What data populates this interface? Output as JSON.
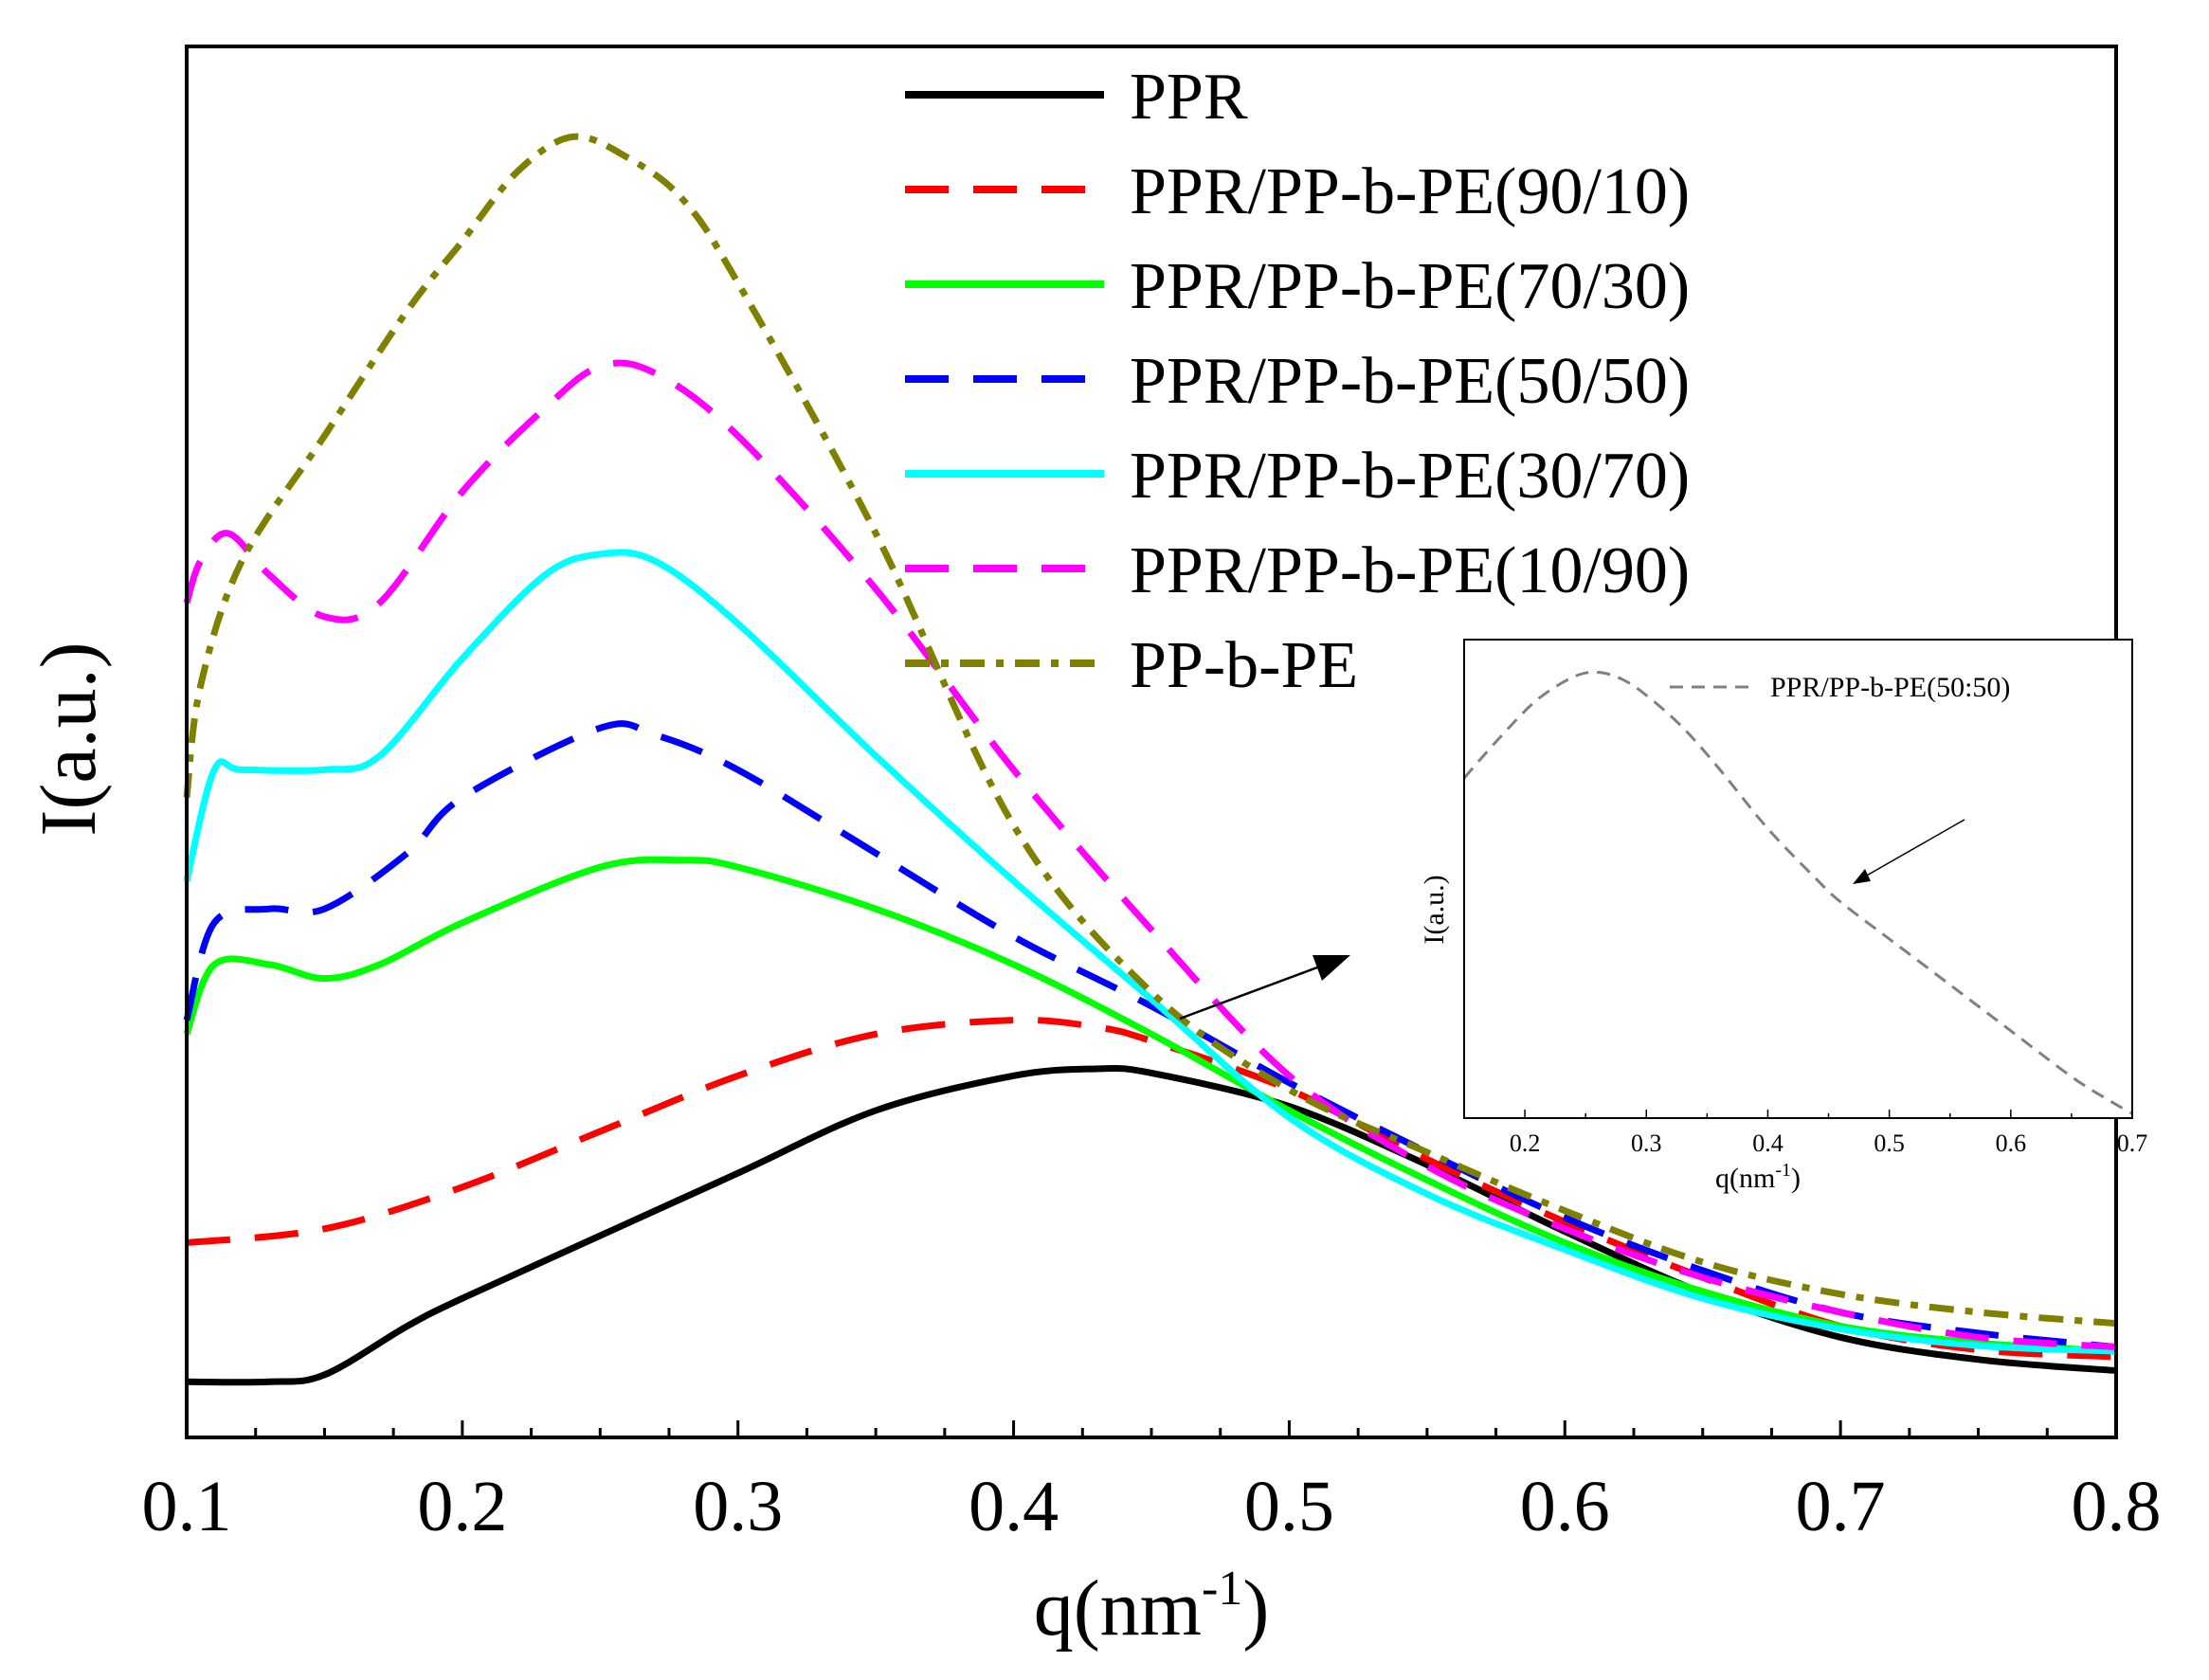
{
  "chart_data": [
    {
      "type": "line",
      "title": "",
      "xlabel": "q(nm",
      "xlabel_sup": "-1",
      "xlabel_close": ")",
      "ylabel": "I(a.u.)",
      "xlim": [
        0.1,
        0.8
      ],
      "ylim": [
        0,
        1
      ],
      "y_ticks_labeled": false,
      "xticks": [
        0.1,
        0.2,
        0.3,
        0.4,
        0.5,
        0.6,
        0.7,
        0.8
      ],
      "xtick_labels": [
        "0.1",
        "0.2",
        "0.3",
        "0.4",
        "0.5",
        "0.6",
        "0.7",
        "0.8"
      ],
      "legend_position": "top-center",
      "series": [
        {
          "name": "PPR",
          "color": "#000000",
          "style": "solid",
          "x": [
            0.1,
            0.13,
            0.15,
            0.18,
            0.2,
            0.25,
            0.3,
            0.35,
            0.4,
            0.43,
            0.45,
            0.5,
            0.55,
            0.6,
            0.65,
            0.7,
            0.75,
            0.8
          ],
          "y": [
            0.04,
            0.04,
            0.045,
            0.08,
            0.1,
            0.145,
            0.19,
            0.235,
            0.26,
            0.265,
            0.262,
            0.238,
            0.196,
            0.148,
            0.104,
            0.072,
            0.056,
            0.048
          ]
        },
        {
          "name": "PPR/PP-b-PE(90/10)",
          "color": "#ff0000",
          "style": "dashed",
          "x": [
            0.1,
            0.15,
            0.2,
            0.25,
            0.3,
            0.35,
            0.4,
            0.43,
            0.45,
            0.5,
            0.55,
            0.6,
            0.65,
            0.7,
            0.75,
            0.8
          ],
          "y": [
            0.14,
            0.15,
            0.18,
            0.22,
            0.26,
            0.29,
            0.3,
            0.295,
            0.285,
            0.25,
            0.2,
            0.155,
            0.115,
            0.08,
            0.063,
            0.058
          ]
        },
        {
          "name": "PPR/PP-b-PE(70/30)",
          "color": "#00ff00",
          "style": "solid",
          "x": [
            0.1,
            0.11,
            0.13,
            0.15,
            0.17,
            0.2,
            0.25,
            0.28,
            0.3,
            0.35,
            0.4,
            0.45,
            0.5,
            0.55,
            0.6,
            0.65,
            0.7,
            0.75,
            0.8
          ],
          "y": [
            0.29,
            0.34,
            0.34,
            0.33,
            0.34,
            0.37,
            0.41,
            0.415,
            0.41,
            0.38,
            0.34,
            0.29,
            0.235,
            0.185,
            0.14,
            0.105,
            0.08,
            0.068,
            0.062
          ]
        },
        {
          "name": "PPR/PP-b-PE(50/50)",
          "color": "#0000ff",
          "style": "dashed",
          "x": [
            0.1,
            0.11,
            0.13,
            0.15,
            0.18,
            0.2,
            0.25,
            0.27,
            0.3,
            0.35,
            0.4,
            0.45,
            0.5,
            0.55,
            0.6,
            0.65,
            0.7,
            0.75,
            0.8
          ],
          "y": [
            0.3,
            0.37,
            0.38,
            0.38,
            0.42,
            0.46,
            0.51,
            0.505,
            0.48,
            0.42,
            0.36,
            0.31,
            0.255,
            0.205,
            0.158,
            0.12,
            0.09,
            0.075,
            0.065
          ]
        },
        {
          "name": "PPR/PP-b-PE(30/70)",
          "color": "#00ffff",
          "style": "solid",
          "x": [
            0.1,
            0.11,
            0.12,
            0.15,
            0.17,
            0.2,
            0.23,
            0.25,
            0.27,
            0.3,
            0.35,
            0.4,
            0.45,
            0.5,
            0.55,
            0.6,
            0.65,
            0.7,
            0.75,
            0.8
          ],
          "y": [
            0.4,
            0.48,
            0.48,
            0.48,
            0.49,
            0.56,
            0.62,
            0.635,
            0.63,
            0.585,
            0.49,
            0.4,
            0.315,
            0.23,
            0.175,
            0.135,
            0.1,
            0.078,
            0.066,
            0.062
          ]
        },
        {
          "name": "PPR/PP-b-PE(10/90)",
          "color": "#ff00ff",
          "style": "dashed",
          "x": [
            0.1,
            0.105,
            0.115,
            0.13,
            0.15,
            0.17,
            0.2,
            0.23,
            0.25,
            0.27,
            0.3,
            0.35,
            0.4,
            0.45,
            0.5,
            0.55,
            0.6,
            0.65,
            0.7,
            0.75,
            0.8
          ],
          "y": [
            0.6,
            0.63,
            0.65,
            0.62,
            0.59,
            0.6,
            0.68,
            0.74,
            0.77,
            0.765,
            0.72,
            0.61,
            0.48,
            0.365,
            0.26,
            0.195,
            0.15,
            0.115,
            0.09,
            0.072,
            0.065
          ]
        },
        {
          "name": "PP-b-PE",
          "color": "#808000",
          "style": "dotted",
          "x": [
            0.1,
            0.105,
            0.12,
            0.15,
            0.18,
            0.2,
            0.22,
            0.24,
            0.26,
            0.28,
            0.3,
            0.35,
            0.4,
            0.45,
            0.5,
            0.55,
            0.6,
            0.65,
            0.7,
            0.75,
            0.8
          ],
          "y": [
            0.46,
            0.54,
            0.63,
            0.72,
            0.81,
            0.86,
            0.91,
            0.935,
            0.92,
            0.89,
            0.83,
            0.65,
            0.44,
            0.32,
            0.25,
            0.205,
            0.163,
            0.126,
            0.103,
            0.09,
            0.082
          ]
        }
      ]
    },
    {
      "type": "line",
      "title": "",
      "xlabel": "q(nm",
      "xlabel_sup": "-1",
      "xlabel_close": ")",
      "ylabel": "I(a.u.)",
      "xlim": [
        0.15,
        0.7
      ],
      "ylim": [
        0,
        1
      ],
      "y_ticks_labeled": false,
      "xticks": [
        0.2,
        0.3,
        0.4,
        0.5,
        0.6,
        0.7
      ],
      "xtick_labels": [
        "0.2",
        "0.3",
        "0.4",
        "0.5",
        "0.6",
        "0.7"
      ],
      "legend_position": "top-right",
      "annotation": "arrow pointing to curve",
      "series": [
        {
          "name": "PPR/PP-b-PE(50:50)",
          "color": "#808080",
          "style": "dashed",
          "x": [
            0.15,
            0.18,
            0.21,
            0.24,
            0.26,
            0.28,
            0.3,
            0.33,
            0.36,
            0.4,
            0.44,
            0.46,
            0.5,
            0.55,
            0.6,
            0.65,
            0.68,
            0.7
          ],
          "y": [
            0.74,
            0.83,
            0.91,
            0.96,
            0.97,
            0.955,
            0.92,
            0.85,
            0.76,
            0.63,
            0.52,
            0.47,
            0.39,
            0.29,
            0.19,
            0.09,
            0.04,
            0.01
          ]
        }
      ]
    }
  ]
}
